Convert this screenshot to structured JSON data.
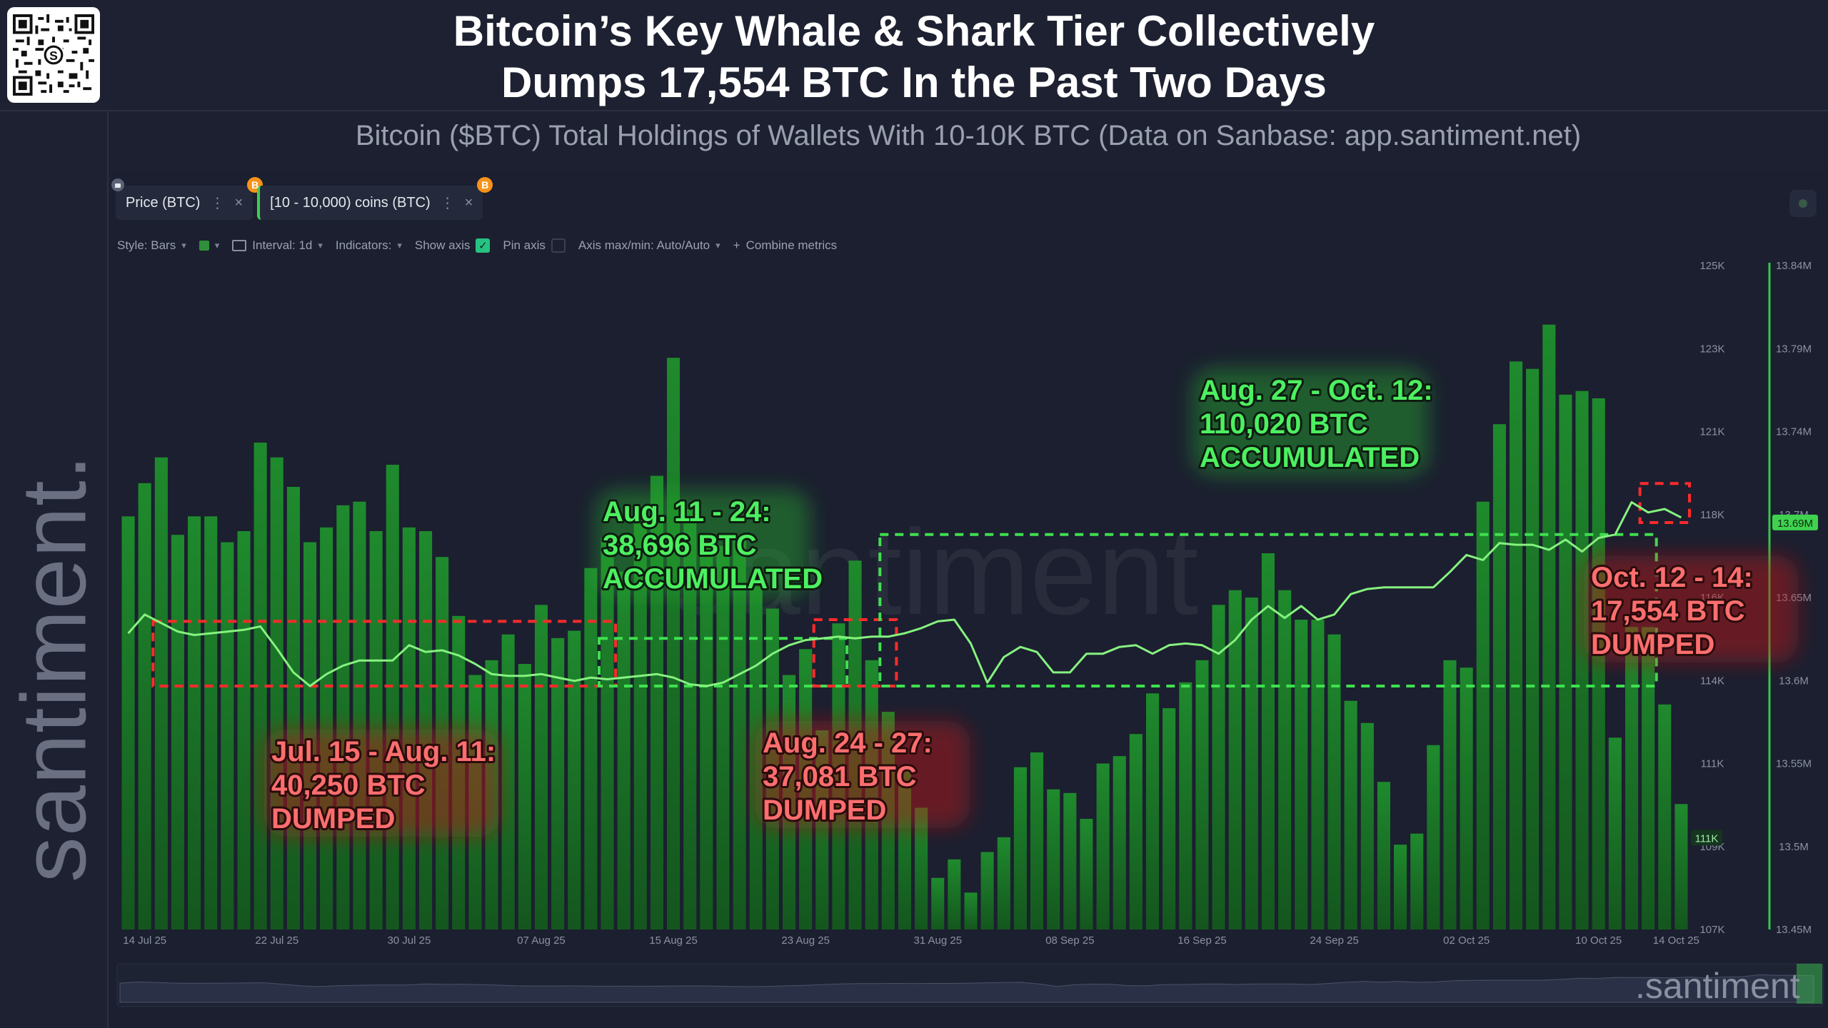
{
  "header": {
    "title_line1": "Bitcoin’s Key Whale & Shark Tier Collectively",
    "title_line2": "Dumps 17,554 BTC In the Past Two Days",
    "subtitle": "Bitcoin ($BTC) Total Holdings of Wallets With 10-10K BTC (Data on Sanbase: app.santiment.net)"
  },
  "brand": {
    "vertical_logo": "santiment.",
    "corner_logo": ".santiment"
  },
  "tabs": [
    {
      "label": "Price (BTC)",
      "badge": "B"
    },
    {
      "label": "[10 - 10,000) coins (BTC)",
      "badge": "B"
    }
  ],
  "tab_controls": {
    "menu": "⋮",
    "close": "×"
  },
  "toolbar": {
    "style": "Style: Bars",
    "interval": "Interval: 1d",
    "indicators": "Indicators:",
    "show_axis": "Show axis",
    "pin_axis": "Pin axis",
    "axis_minmax": "Axis max/min: Auto/Auto",
    "combine": "Combine metrics"
  },
  "colors": {
    "bar": "#1e7a2a",
    "line": "#7ef07a",
    "accent_green": "#3fe04f",
    "accent_red": "#ff2e2e",
    "badge_btc": "#f7931a"
  },
  "icons": [
    "qr-code-icon",
    "lock-icon",
    "bitcoin-badge-icon",
    "menu-dots-icon",
    "close-icon",
    "calendar-icon",
    "checkbox-icon",
    "plus-icon",
    "chevron-down-icon"
  ],
  "chart_data": {
    "type": "bar+line",
    "x_tick_labels": [
      "14 Jul 25",
      "22 Jul 25",
      "30 Jul 25",
      "07 Aug 25",
      "15 Aug 25",
      "23 Aug 25",
      "31 Aug 25",
      "08 Sep 25",
      "16 Sep 25",
      "24 Sep 25",
      "02 Oct 25",
      "10 Oct 25",
      "14 Oct 25"
    ],
    "price_axis": {
      "ticks": [
        "107K",
        "109K",
        "111K",
        "114K",
        "116K",
        "118K",
        "121K",
        "123K",
        "125K"
      ],
      "min": 107000,
      "max": 125000,
      "current_label": "111K"
    },
    "holdings_axis": {
      "ticks": [
        "13.45M",
        "13.5M",
        "13.55M",
        "13.6M",
        "13.65M",
        "13.7M",
        "13.74M",
        "13.79M",
        "13.84M"
      ],
      "min": 13450000,
      "max": 13840000,
      "current_label": "13.69M"
    },
    "series": [
      {
        "name": "Price (BTC)",
        "kind": "bar",
        "start_date": "2025-07-13",
        "values": [
          118200,
          119100,
          119800,
          117700,
          118200,
          118200,
          117500,
          117800,
          120200,
          119800,
          119000,
          117500,
          117900,
          118500,
          118600,
          117800,
          119600,
          117900,
          117800,
          117100,
          115500,
          113900,
          114300,
          115000,
          114200,
          115800,
          114900,
          115100,
          116800,
          117600,
          116700,
          118500,
          119300,
          122500,
          118400,
          117400,
          117400,
          117700,
          116300,
          115700,
          113900,
          114600,
          112400,
          115300,
          117000,
          114300,
          112900,
          111400,
          110300,
          108400,
          108900,
          108000,
          109100,
          109500,
          111400,
          111800,
          110800,
          110700,
          110000,
          111500,
          111700,
          112300,
          113400,
          113000,
          113700,
          114300,
          115800,
          116200,
          116000,
          117200,
          116200,
          115400,
          115400,
          115000,
          113200,
          112600,
          111000,
          109300,
          109600,
          112000,
          114300,
          114100,
          118600,
          120700,
          122400,
          122200,
          123400,
          121500,
          121600,
          121400,
          112200,
          115200,
          115200,
          113100,
          110400
        ]
      },
      {
        "name": "[10 - 10,000) coins (BTC)",
        "kind": "line",
        "start_date": "2025-07-13",
        "values": [
          13624000,
          13635000,
          13630000,
          13625000,
          13623000,
          13624000,
          13625000,
          13626000,
          13628000,
          13615000,
          13601000,
          13593000,
          13600000,
          13605000,
          13608000,
          13608000,
          13608000,
          13617000,
          13613000,
          13614000,
          13611000,
          13606000,
          13600000,
          13599000,
          13599000,
          13600000,
          13598000,
          13596000,
          13598000,
          13597000,
          13598000,
          13599000,
          13600000,
          13598000,
          13594000,
          13593000,
          13595000,
          13600000,
          13605000,
          13612000,
          13617000,
          13620000,
          13621000,
          13622000,
          13621000,
          13622000,
          13622000,
          13624000,
          13627000,
          13631000,
          13632000,
          13618000,
          13595000,
          13610000,
          13616000,
          13613000,
          13601000,
          13601000,
          13612000,
          13612000,
          13616000,
          13617000,
          13612000,
          13617000,
          13618000,
          13617000,
          13612000,
          13620000,
          13632000,
          13640000,
          13633000,
          13640000,
          13632000,
          13635000,
          13647000,
          13650000,
          13651000,
          13651000,
          13651000,
          13651000,
          13660000,
          13670000,
          13667000,
          13677000,
          13676000,
          13676000,
          13673000,
          13679000,
          13672000,
          13680000,
          13682000,
          13701000,
          13695000,
          13697000,
          13692000
        ]
      }
    ],
    "annotations": [
      {
        "color": "red",
        "lines": [
          "Jul. 15 - Aug. 11:",
          "40,250 BTC",
          "DUMPED"
        ]
      },
      {
        "color": "green",
        "lines": [
          "Aug. 11 - 24:",
          "38,696 BTC",
          "ACCUMULATED"
        ]
      },
      {
        "color": "red",
        "lines": [
          "Aug. 24 - 27:",
          "37,081 BTC",
          "DUMPED"
        ]
      },
      {
        "color": "green",
        "lines": [
          "Aug. 27 - Oct. 12:",
          "110,020 BTC",
          "ACCUMULATED"
        ]
      },
      {
        "color": "red",
        "lines": [
          "Oct. 12 - 14:",
          "17,554 BTC",
          "DUMPED"
        ]
      }
    ],
    "watermark": "santiment",
    "grid": false,
    "legend": "top-left tabs"
  }
}
